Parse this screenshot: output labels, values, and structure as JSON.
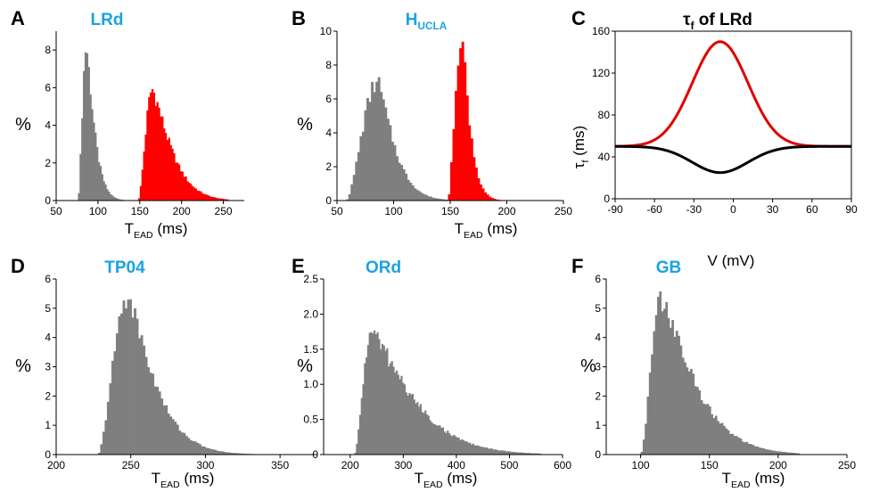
{
  "chart_data": [
    {
      "type": "bar",
      "panel_letter": "A",
      "title": "LRd",
      "ylabel": "%",
      "xlabel": "T",
      "xlabel_sub": "EAD",
      "xlabel_unit": " (ms)",
      "xlim": [
        50,
        275
      ],
      "ylim": [
        0,
        9
      ],
      "xticks": [
        50,
        100,
        150,
        200,
        250
      ],
      "yticks": [
        0,
        2,
        4,
        6,
        8
      ],
      "bin_width": 2,
      "series": [
        {
          "color": "#7f7f7f",
          "shape": "skewed",
          "mode": 86,
          "peak": 8.2,
          "left_edge": 76,
          "right_edge": 138,
          "decay": 12
        },
        {
          "color": "#ff0000",
          "shape": "skewed",
          "mode": 165,
          "peak": 5.9,
          "left_edge": 148,
          "right_edge": 255,
          "decay": 28
        }
      ]
    },
    {
      "type": "bar",
      "panel_letter": "B",
      "title": "H",
      "title_sub": "UCLA",
      "ylabel": "%",
      "xlabel": "T",
      "xlabel_sub": "EAD",
      "xlabel_unit": " (ms)",
      "xlim": [
        50,
        250
      ],
      "ylim": [
        0,
        10
      ],
      "xticks": [
        50,
        100,
        150,
        200,
        250
      ],
      "yticks": [
        0,
        2,
        4,
        6,
        8,
        10
      ],
      "bin_width": 2,
      "series": [
        {
          "color": "#7f7f7f",
          "shape": "skewed",
          "mode": 86,
          "peak": 7.0,
          "left_edge": 58,
          "right_edge": 150,
          "decay": 18
        },
        {
          "color": "#ff0000",
          "shape": "skewed",
          "mode": 160,
          "peak": 9.8,
          "left_edge": 148,
          "right_edge": 230,
          "decay": 9
        }
      ]
    },
    {
      "type": "line",
      "panel_letter": "C",
      "title": "τ",
      "title_sub": "f",
      "title_rest": " of LRd",
      "ylabel": "τ",
      "ylabel_sub": "f",
      "ylabel_unit": " (ms)",
      "xlabel": "V (mV)",
      "xlim": [
        -90,
        90
      ],
      "ylim": [
        0,
        160
      ],
      "xticks": [
        -90,
        -60,
        -30,
        0,
        30,
        60,
        90
      ],
      "yticks": [
        0,
        40,
        80,
        120,
        160
      ],
      "series": [
        {
          "color": "#e00000",
          "base": 50,
          "amplitude": 100,
          "center": -10,
          "width": 30
        },
        {
          "color": "#000000",
          "base": 50,
          "amplitude": -25,
          "center": -10,
          "width": 30
        }
      ]
    },
    {
      "type": "bar",
      "panel_letter": "D",
      "title": "TP04",
      "ylabel": "%",
      "xlabel": "T",
      "xlabel_sub": "EAD",
      "xlabel_unit": " (ms)",
      "xlim": [
        200,
        375
      ],
      "ylim": [
        0,
        6
      ],
      "xticks": [
        200,
        250,
        300,
        350
      ],
      "yticks": [
        0,
        1,
        2,
        3,
        4,
        5,
        6
      ],
      "bin_width": 1.5,
      "series": [
        {
          "color": "#7f7f7f",
          "shape": "skewed",
          "mode": 248,
          "peak": 5.4,
          "left_edge": 228,
          "right_edge": 372,
          "decay": 22
        }
      ]
    },
    {
      "type": "bar",
      "panel_letter": "E",
      "title": "ORd",
      "ylabel": "%",
      "xlabel": "T",
      "xlabel_sub": "EAD",
      "xlabel_unit": " (ms)",
      "xlim": [
        150,
        600
      ],
      "ylim": [
        0,
        2.5
      ],
      "xticks": [
        200,
        300,
        400,
        500,
        600
      ],
      "yticks": [
        0,
        0.5,
        1.0,
        1.5,
        2.0,
        2.5
      ],
      "ytick_labels": [
        "0",
        "0.5",
        "1.0",
        "1.5",
        "2.0",
        "2.5"
      ],
      "bin_width": 3,
      "series": [
        {
          "color": "#7f7f7f",
          "shape": "skewed",
          "mode": 240,
          "peak": 1.75,
          "left_edge": 208,
          "right_edge": 560,
          "decay": 95
        }
      ]
    },
    {
      "type": "bar",
      "panel_letter": "F",
      "title": "GB",
      "ylabel": "%",
      "xlabel": "T",
      "xlabel_sub": "EAD",
      "xlabel_unit": " (ms)",
      "xlim": [
        75,
        250
      ],
      "ylim": [
        0,
        6
      ],
      "xticks": [
        100,
        150,
        200,
        250
      ],
      "yticks": [
        0,
        1,
        2,
        3,
        4,
        5,
        6
      ],
      "bin_width": 1.5,
      "series": [
        {
          "color": "#7f7f7f",
          "shape": "skewed",
          "mode": 115,
          "peak": 5.3,
          "left_edge": 100,
          "right_edge": 215,
          "decay": 30
        }
      ]
    }
  ],
  "style": {
    "title_color": "#1aa3e0",
    "black_title_color": "#000000",
    "axis_color": "#000000"
  }
}
